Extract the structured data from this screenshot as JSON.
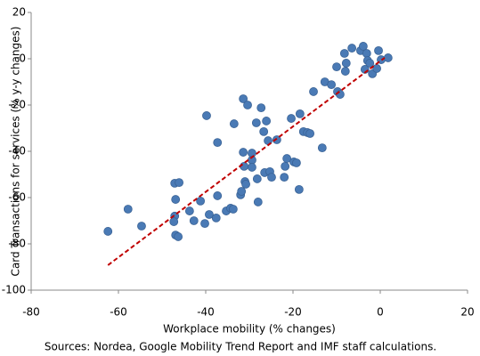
{
  "chart_data": {
    "type": "scatter",
    "x_label": "Workplace mobility (% changes)",
    "y_label": "Card Transactions for services (% y-y changes)",
    "source": "Sources: Nordea, Google Mobility Trend Report and IMF staff calculations.",
    "color": "#4a7ab5",
    "x": [
      -62.4,
      -57.8,
      -54.7,
      -47.1,
      -46.1,
      -46.9,
      -47.1,
      -47.3,
      -46.9,
      -46.3,
      -43.7,
      -42.7,
      -41.2,
      -40.2,
      -39.2,
      -39.8,
      -37.3,
      -37.3,
      -37.6,
      -35.3,
      -34.3,
      -33.7,
      -33.5,
      -32,
      -31.8,
      -31.4,
      -31.4,
      -31.2,
      -31,
      -30.8,
      -30.4,
      -29.4,
      -29.4,
      -29.4,
      -28.4,
      -28.2,
      -28,
      -27.3,
      -26.7,
      -26.5,
      -26.1,
      -25.7,
      -25.3,
      -24.9,
      -23.7,
      -22,
      -21.8,
      -21.4,
      -20.4,
      -19.8,
      -19.2,
      -18.6,
      -18.4,
      -17.6,
      -16.7,
      -16.1,
      -15.3,
      -13.3,
      -12.7,
      -11.2,
      -10,
      -9.8,
      -9.2,
      -8.2,
      -7.8,
      -8,
      -6.5,
      -4.5,
      -3.9,
      -3.5,
      -3.1,
      -2.9,
      -2.4,
      -1.8,
      -0.8,
      -0.4,
      0.2,
      1.8
    ],
    "values": [
      -74.6,
      -65,
      -72.3,
      -53.8,
      -53.5,
      -60.8,
      -68,
      -70.4,
      -76.2,
      -76.9,
      -65.8,
      -70,
      -61.5,
      -71.2,
      -67.3,
      -24.6,
      -36.2,
      -59.2,
      -68.8,
      -65.8,
      -64.6,
      -65,
      -28.1,
      -58.8,
      -57.3,
      -17.3,
      -40.4,
      -46.5,
      -53.1,
      -54.2,
      -20,
      -40.8,
      -43.8,
      -46.9,
      -27.7,
      -51.9,
      -61.9,
      -21.2,
      -31.5,
      -49.2,
      -26.9,
      -35.4,
      -48.8,
      -51.2,
      -35,
      -51.2,
      -46.5,
      -43.1,
      -25.8,
      -44.6,
      -45,
      -56.5,
      -23.8,
      -31.5,
      -31.9,
      -32.3,
      -14.2,
      -38.5,
      -10,
      -11.2,
      -3.5,
      -14.2,
      -15.4,
      2.3,
      -1.9,
      -5.4,
      4.6,
      3.5,
      5.4,
      -4.6,
      2.3,
      -0.8,
      -1.9,
      -6.5,
      -4.2,
      3.5,
      -0.4,
      0.4
    ],
    "trendline": {
      "x": [
        -62.4,
        1
      ],
      "values": [
        -89.2,
        0.4
      ],
      "color": "#c00000"
    },
    "xlim": [
      -80,
      20
    ],
    "ylim": [
      -100,
      20
    ],
    "xticks": [
      -80,
      -60,
      -40,
      -20,
      0,
      20
    ],
    "yticks": [
      -100,
      -80,
      -60,
      -40,
      -20,
      0,
      20
    ]
  }
}
